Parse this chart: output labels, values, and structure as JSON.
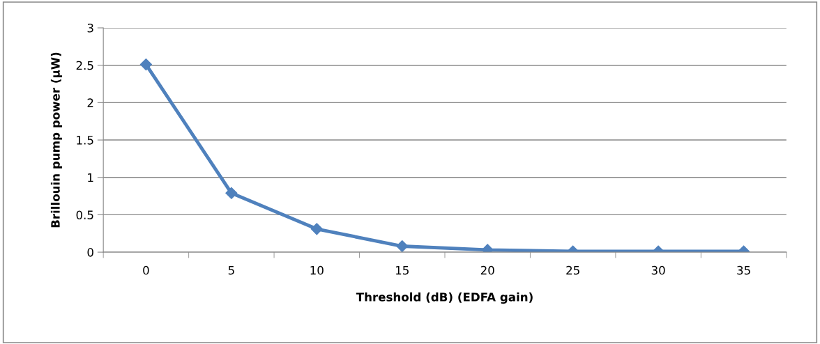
{
  "chart_data": {
    "type": "line",
    "xlabel": "Threshold (dB) (EDFA gain)",
    "ylabel": "Brillouin pump power (µW)",
    "categories": [
      "0",
      "5",
      "10",
      "15",
      "20",
      "25",
      "30",
      "35"
    ],
    "series": [
      {
        "color": "#4f81bd",
        "values": [
          2.51,
          0.79,
          0.31,
          0.08,
          0.03,
          0.01,
          0.01,
          0.01
        ]
      }
    ],
    "ylim": [
      0,
      3
    ],
    "yticks": [
      0,
      0.5,
      1,
      1.5,
      2,
      2.5,
      3
    ],
    "grid": "y",
    "marker": "diamond",
    "line_style": "solid",
    "legend": false
  }
}
